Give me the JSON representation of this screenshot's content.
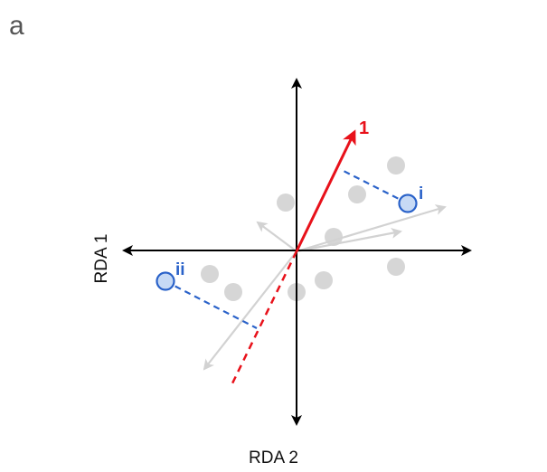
{
  "panel_label": "a",
  "axes": {
    "x_label": "RDA 2",
    "y_label": "RDA 1"
  },
  "colors": {
    "axis": "#000000",
    "highlight_vector": "#e8111a",
    "projection": "#2a62c9",
    "sample_fill": "#c7daf5",
    "sample_stroke": "#2a62c9",
    "background_points": "#d6d6d6",
    "background_vectors": "#d2d2d2"
  },
  "highlight_vector": {
    "label": "1"
  },
  "highlighted_samples": [
    {
      "id": "i",
      "label": "i"
    },
    {
      "id": "ii",
      "label": "ii"
    }
  ],
  "background": {
    "point_count": 9,
    "vector_count": 4
  }
}
